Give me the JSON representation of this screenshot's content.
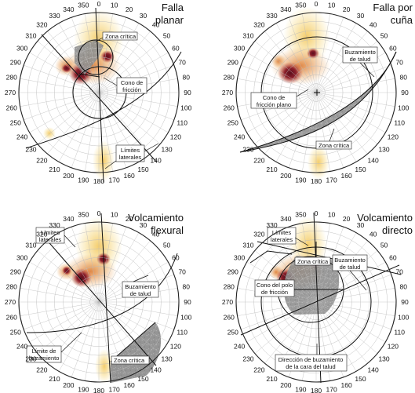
{
  "figure": {
    "panels": [
      {
        "id": "planar",
        "title_lines": [
          "Falla",
          "planar"
        ],
        "labels": [
          "Zona crítica",
          "Cono de",
          "fricción",
          "Límites",
          "laterales"
        ]
      },
      {
        "id": "wedge",
        "title_lines": [
          "Falla por",
          "cuña"
        ],
        "labels": [
          "Buzamiento",
          "de talud",
          "Cono de",
          "fricción plano",
          "Zona crítica"
        ]
      },
      {
        "id": "flexural",
        "title_lines": [
          "Volcamiento",
          "flexural"
        ],
        "labels": [
          "Límites",
          "laterales",
          "Buzamiento",
          "de talud",
          "Límite de",
          "buzamiento",
          "Zona crítica"
        ]
      },
      {
        "id": "direct",
        "title_lines": [
          "Volcamiento",
          "directo"
        ],
        "labels": [
          "Límites",
          "laterales",
          "Zona crítica",
          "Buzamiento",
          "de talud",
          "Cono del polo",
          "de fricción",
          "Dirección de buzamiento",
          "de la cara del talud"
        ]
      }
    ],
    "azimuth_ticks": [
      "0",
      "10",
      "20",
      "30",
      "40",
      "50",
      "60",
      "70",
      "80",
      "90",
      "100",
      "110",
      "120",
      "130",
      "140",
      "150",
      "160",
      "170",
      "180",
      "190",
      "200",
      "210",
      "220",
      "230",
      "240",
      "250",
      "260",
      "270",
      "280",
      "290",
      "300",
      "310",
      "320",
      "330",
      "340",
      "350"
    ],
    "colors": {
      "stereonet_outline": "#222222",
      "grid": "#bbbbbb",
      "density_low": "#f6d66a",
      "density_mid": "#e79a3f",
      "density_high": "#8b1f2b",
      "critical_zone": "#8f8f8f"
    }
  }
}
